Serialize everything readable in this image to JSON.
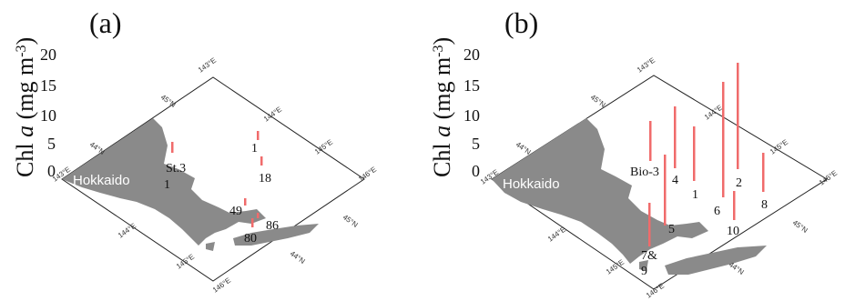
{
  "panels": [
    {
      "label": "(a)",
      "y_axis_label": "Chl a (mg m-3)",
      "y_ticks": [
        "20",
        "15",
        "10",
        "5",
        "0"
      ],
      "place_label": "Hokkaido",
      "lon_labels": [
        "143°E",
        "144°E",
        "145°E",
        "146°E",
        "143°E",
        "144°E",
        "145°E",
        "146°E"
      ],
      "lat_labels": [
        "44°N",
        "45°N",
        "44°N",
        "45°N"
      ],
      "stations": [
        "St.3",
        "1",
        "1",
        "18",
        "49",
        "86",
        "80"
      ],
      "chl_values": [
        2,
        3,
        2,
        2,
        1,
        1,
        2
      ]
    },
    {
      "label": "(b)",
      "y_axis_label": "Chl a (mg m-3)",
      "y_ticks": [
        "20",
        "15",
        "10",
        "5",
        "0"
      ],
      "place_label": "Hokkaido",
      "lon_labels": [
        "143°E",
        "144°E",
        "145°E",
        "146°E",
        "143°E",
        "144°E",
        "145°E",
        "146°E"
      ],
      "lat_labels": [
        "44°N",
        "45°N",
        "44°N",
        "45°N"
      ],
      "stations": [
        "Bio-3",
        "4",
        "1",
        "2",
        "8",
        "6",
        "10",
        "5",
        "7&",
        "9"
      ],
      "chl_values": [
        6,
        9,
        8,
        17,
        6,
        13,
        5,
        7,
        10,
        7
      ]
    }
  ],
  "colors": {
    "bar": "#f06b6b",
    "land": "#8a8a8a"
  }
}
